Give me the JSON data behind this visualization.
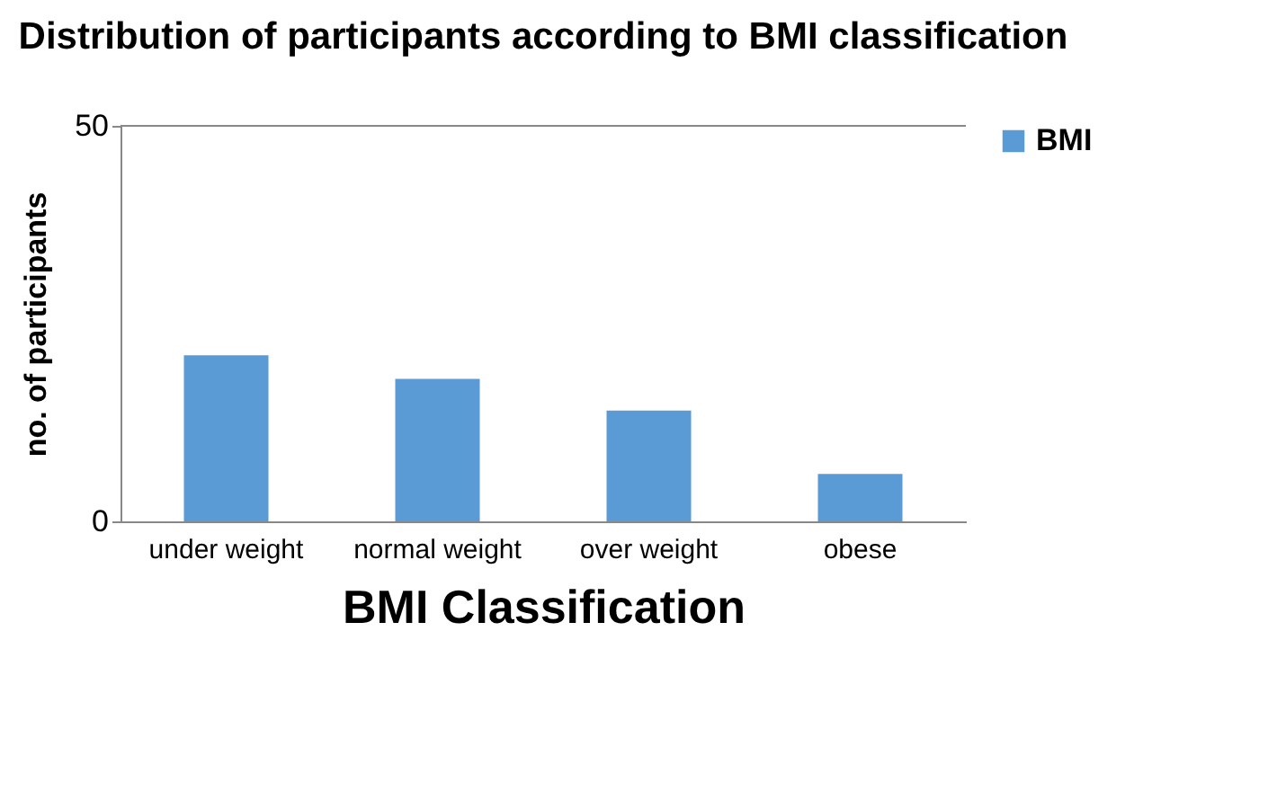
{
  "chart_data": {
    "type": "bar",
    "title": "Distribution of participants according to BMI classification",
    "xlabel": "BMI Classification",
    "ylabel": "no. of participants",
    "categories": [
      "under weight",
      "normal weight",
      "over weight",
      "obese"
    ],
    "series": [
      {
        "name": "BMI",
        "color": "#5b9bd5",
        "values": [
          21,
          18,
          14,
          6
        ]
      }
    ],
    "ylim": [
      0,
      50
    ],
    "yticks": [
      0,
      50
    ],
    "legend": "right"
  }
}
